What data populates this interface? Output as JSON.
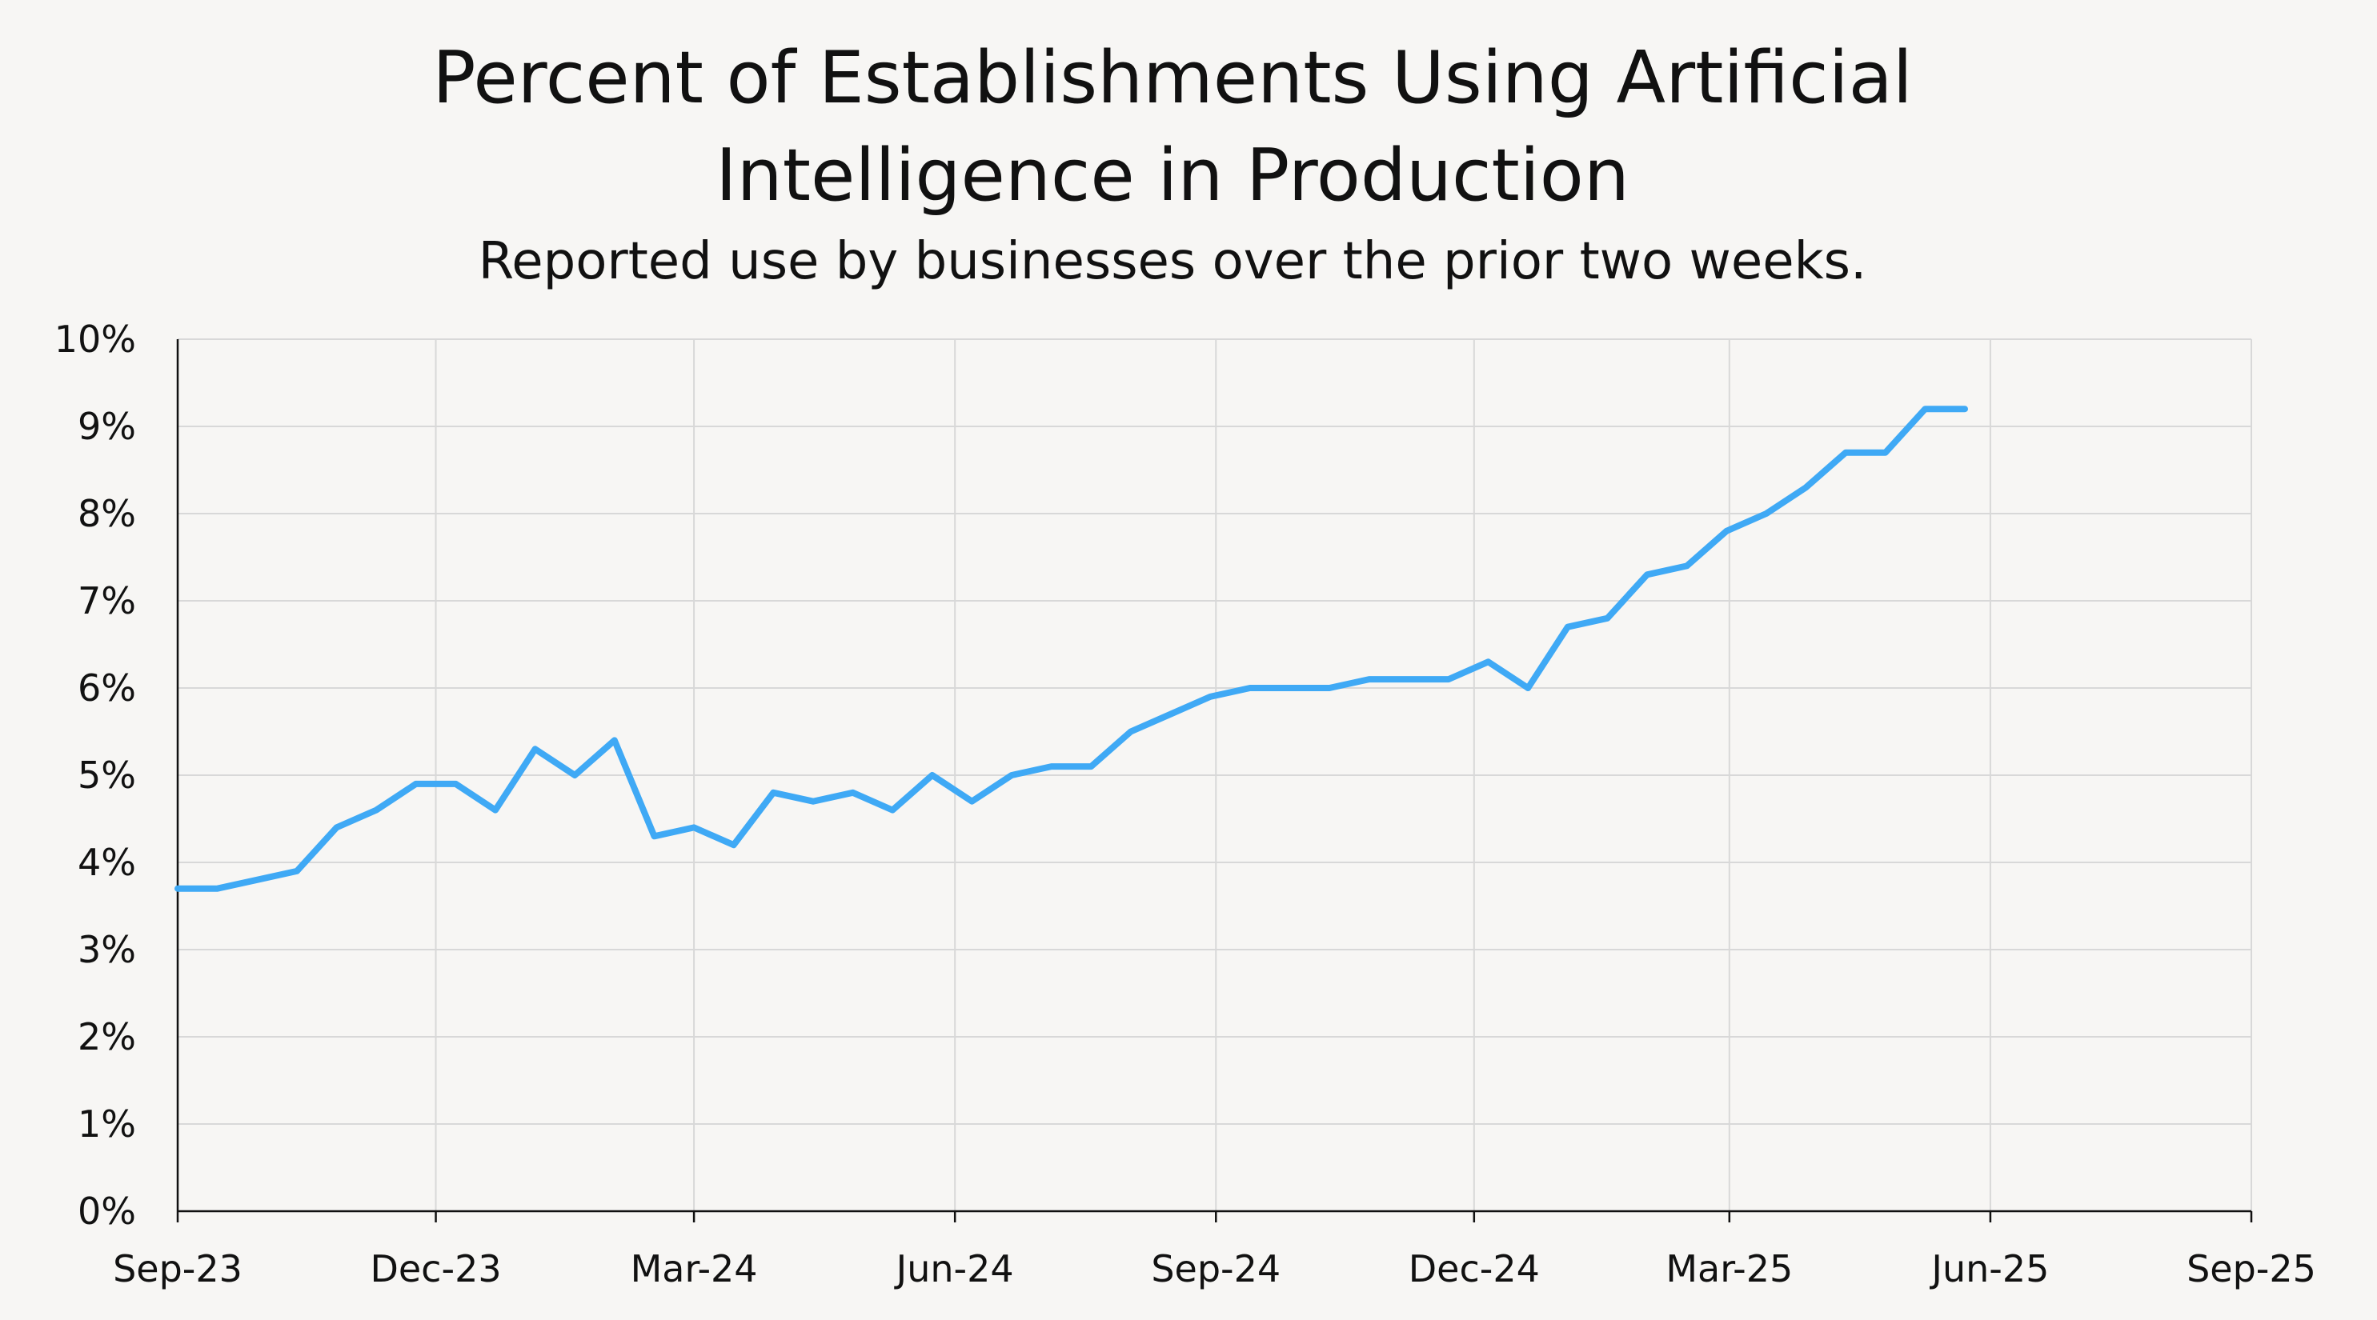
{
  "chart_data": {
    "type": "line",
    "title_lines": [
      "Percent of Establishments Using Artificial",
      "Intelligence in Production"
    ],
    "subtitle": "Reported use by businesses over the prior two weeks.",
    "xlabel": "",
    "ylabel": "",
    "x_ticks": [
      {
        "date": "2023-09-01",
        "label": "Sep-23"
      },
      {
        "date": "2023-12-01",
        "label": "Dec-23"
      },
      {
        "date": "2024-03-01",
        "label": "Mar-24"
      },
      {
        "date": "2024-06-01",
        "label": "Jun-24"
      },
      {
        "date": "2024-09-01",
        "label": "Sep-24"
      },
      {
        "date": "2024-12-01",
        "label": "Dec-24"
      },
      {
        "date": "2025-03-01",
        "label": "Mar-25"
      },
      {
        "date": "2025-06-01",
        "label": "Jun-25"
      },
      {
        "date": "2025-09-01",
        "label": "Sep-25"
      }
    ],
    "xlim": [
      "2023-09-01",
      "2025-09-01"
    ],
    "y_ticks": [
      {
        "value": 0,
        "label": "0%"
      },
      {
        "value": 1,
        "label": "1%"
      },
      {
        "value": 2,
        "label": "2%"
      },
      {
        "value": 3,
        "label": "3%"
      },
      {
        "value": 4,
        "label": "4%"
      },
      {
        "value": 5,
        "label": "5%"
      },
      {
        "value": 6,
        "label": "6%"
      },
      {
        "value": 7,
        "label": "7%"
      },
      {
        "value": 8,
        "label": "8%"
      },
      {
        "value": 9,
        "label": "9%"
      },
      {
        "value": 10,
        "label": "10%"
      }
    ],
    "ylim": [
      0,
      10
    ],
    "y_unit": "%",
    "grid": true,
    "legend": "none",
    "series": [
      {
        "color": "#3fa9f5",
        "x": [
          "2023-09-01",
          "2023-09-15",
          "2023-09-29",
          "2023-10-13",
          "2023-10-27",
          "2023-11-10",
          "2023-11-24",
          "2023-12-08",
          "2023-12-22",
          "2024-01-05",
          "2024-01-19",
          "2024-02-02",
          "2024-02-16",
          "2024-03-01",
          "2024-03-15",
          "2024-03-29",
          "2024-04-12",
          "2024-04-26",
          "2024-05-10",
          "2024-05-24",
          "2024-06-07",
          "2024-06-21",
          "2024-07-05",
          "2024-07-19",
          "2024-08-02",
          "2024-08-16",
          "2024-08-30",
          "2024-09-13",
          "2024-09-27",
          "2024-10-11",
          "2024-10-25",
          "2024-11-08",
          "2024-11-22",
          "2024-12-06",
          "2024-12-20",
          "2025-01-03",
          "2025-01-17",
          "2025-01-31",
          "2025-02-14",
          "2025-02-28",
          "2025-03-14",
          "2025-03-28",
          "2025-04-11",
          "2025-04-25",
          "2025-05-09",
          "2025-05-23"
        ],
        "y": [
          3.7,
          3.7,
          3.8,
          3.9,
          4.4,
          4.6,
          4.9,
          4.9,
          4.6,
          5.3,
          5.0,
          5.4,
          4.3,
          4.4,
          4.2,
          4.8,
          4.7,
          4.8,
          4.6,
          5.0,
          4.7,
          5.0,
          5.1,
          5.1,
          5.5,
          5.7,
          5.9,
          6.0,
          6.0,
          6.0,
          6.1,
          6.1,
          6.1,
          6.3,
          6.0,
          6.7,
          6.8,
          7.3,
          7.4,
          7.8,
          8.0,
          8.3,
          8.7,
          8.7,
          9.2,
          9.2
        ]
      }
    ]
  }
}
